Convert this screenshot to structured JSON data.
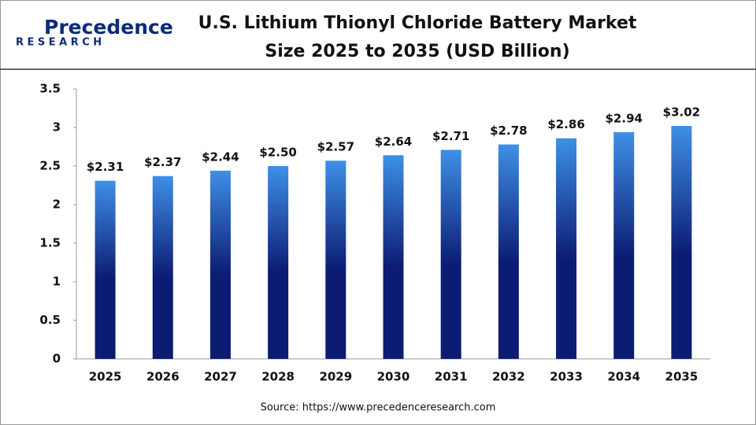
{
  "brand": {
    "name": "Precedence",
    "tagline": "RESEARCH"
  },
  "chart_data": {
    "type": "bar",
    "title_lines": [
      "U.S. Lithium Thionyl Chloride Battery Market",
      "Size 2025 to 2035 (USD Billion)"
    ],
    "categories": [
      "2025",
      "2026",
      "2027",
      "2028",
      "2029",
      "2030",
      "2031",
      "2032",
      "2033",
      "2034",
      "2035"
    ],
    "values": [
      2.31,
      2.37,
      2.44,
      2.5,
      2.57,
      2.64,
      2.71,
      2.78,
      2.86,
      2.94,
      3.02
    ],
    "value_labels": [
      "$2.31",
      "$2.37",
      "$2.44",
      "$2.50",
      "$2.57",
      "$2.64",
      "$2.71",
      "$2.78",
      "$2.86",
      "$2.94",
      "$3.02"
    ],
    "gradient": [
      "#3f8fe6",
      "#0c1c73"
    ],
    "ylim": [
      0,
      3.5
    ],
    "yticks": [
      0,
      0.5,
      1,
      1.5,
      2,
      2.5,
      3,
      3.5
    ],
    "grid": false,
    "source": "Source: https://www.precedenceresearch.com"
  }
}
